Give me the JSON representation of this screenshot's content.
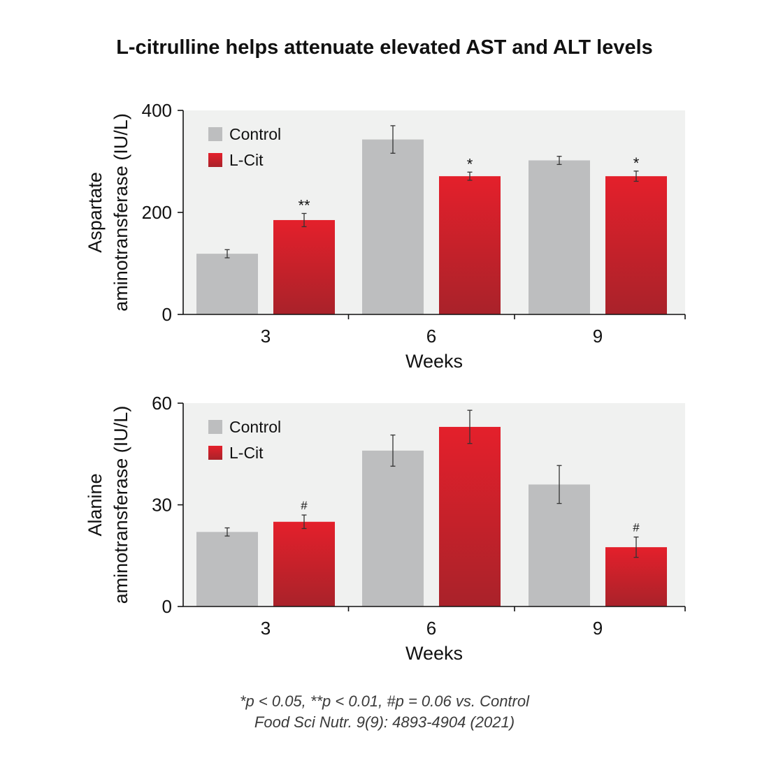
{
  "title": "L-citrulline helps attenuate elevated AST and ALT levels",
  "footnotes": {
    "significance": "*p < 0.05, **p < 0.01, #p = 0.06 vs. Control",
    "citation": "Food Sci Nutr. 9(9): 4893-4904 (2021)"
  },
  "colors": {
    "control": "#bdbebf",
    "lcit_top": "#e4202b",
    "lcit_bottom": "#a9222a",
    "plot_bg": "#f0f1f0"
  },
  "chart_data": [
    {
      "type": "bar",
      "ylabel_line1": "Aspartate",
      "ylabel_line2": "aminotransferase (IU/L)",
      "xlabel": "Weeks",
      "categories": [
        "3",
        "6",
        "9"
      ],
      "ylim": [
        0,
        400
      ],
      "yticks": [
        0,
        200,
        400
      ],
      "legend_position": "top-left",
      "series": [
        {
          "name": "Control",
          "values": [
            119,
            343,
            302
          ],
          "errors": [
            8,
            27,
            8
          ],
          "annotations": [
            "",
            "",
            ""
          ]
        },
        {
          "name": "L-Cit",
          "values": [
            185,
            271,
            271
          ],
          "errors": [
            13,
            8,
            10
          ],
          "annotations": [
            "**",
            "*",
            "*"
          ]
        }
      ]
    },
    {
      "type": "bar",
      "ylabel_line1": "Alanine",
      "ylabel_line2": "aminotransferase (IU/L)",
      "xlabel": "Weeks",
      "categories": [
        "3",
        "6",
        "9"
      ],
      "ylim": [
        0,
        60
      ],
      "yticks": [
        0,
        30,
        60
      ],
      "legend_position": "top-left",
      "series": [
        {
          "name": "Control",
          "values": [
            22,
            46,
            36
          ],
          "errors": [
            1.2,
            4.6,
            5.6
          ],
          "annotations": [
            "",
            "",
            ""
          ]
        },
        {
          "name": "L-Cit",
          "values": [
            25,
            53,
            17.5
          ],
          "errors": [
            2,
            4.9,
            3
          ],
          "annotations": [
            "#",
            "",
            "#"
          ]
        }
      ]
    }
  ]
}
